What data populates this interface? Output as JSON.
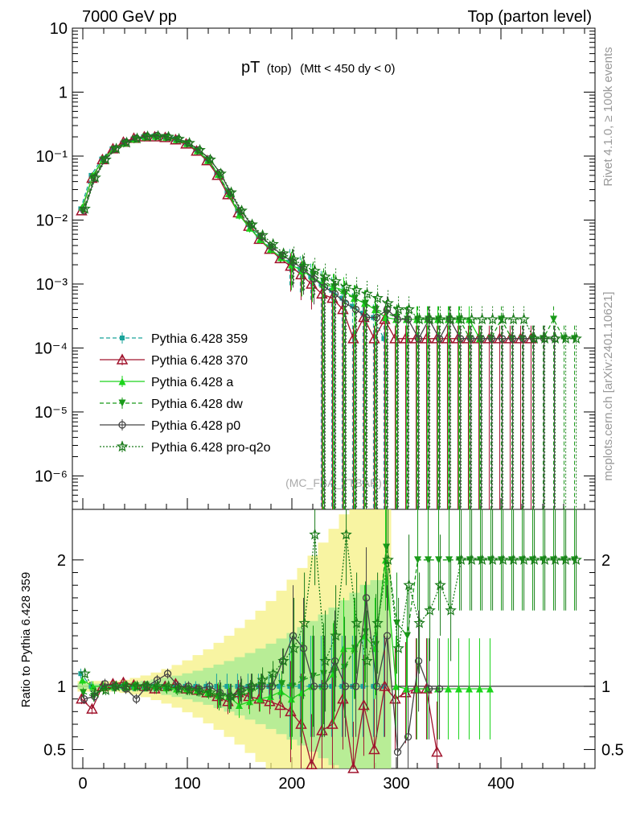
{
  "header": {
    "left": "7000 GeV pp",
    "right": "Top (parton level)"
  },
  "side_labels": {
    "rivet": "Rivet 4.1.0, ≥ 100k events",
    "mcplots": "mcplots.cern.ch [arXiv:2401.10621]"
  },
  "watermark": "(MC_FBA_TTBAR)",
  "chart_data": {
    "type": "line",
    "title": "pT (top) (Mtt < 450 dy < 0)",
    "title_main": "pT",
    "title_sub": "(top)",
    "title_cut": "(Mtt < 450 dy < 0)",
    "xlabel": "",
    "xlim": [
      -10,
      490
    ],
    "x_ticks": [
      "0",
      "100",
      "200",
      "300",
      "400"
    ],
    "upper": {
      "yscale": "log",
      "ylim": [
        3e-07,
        10
      ],
      "y_ticks": [
        "10⁻⁶",
        "10⁻⁵",
        "10⁻⁴",
        "10⁻³",
        "10⁻²",
        "10⁻¹",
        "1",
        "10"
      ]
    },
    "lower": {
      "ylabel": "Ratio to Pythia 6.428 359",
      "ylim": [
        0.35,
        2.4
      ],
      "y_ticks": [
        "0.5",
        "1",
        "2"
      ]
    },
    "x": [
      0,
      10,
      20,
      30,
      40,
      50,
      60,
      70,
      80,
      90,
      100,
      110,
      120,
      130,
      140,
      150,
      160,
      170,
      180,
      190,
      200,
      210,
      220,
      230,
      240,
      250,
      260,
      270,
      280,
      290,
      300,
      310,
      320,
      330,
      340,
      350,
      360,
      370,
      380,
      390,
      400,
      410,
      420,
      430,
      440,
      450,
      460,
      470
    ],
    "series": [
      {
        "name": "Pythia 6.428 359",
        "color": "#1aa39a",
        "marker": "square",
        "dash": "5,3",
        "values": [
          0.015,
          0.05,
          0.09,
          0.13,
          0.16,
          0.185,
          0.2,
          0.205,
          0.2,
          0.185,
          0.16,
          0.125,
          0.09,
          0.055,
          0.028,
          0.014,
          0.0085,
          0.0055,
          0.0038,
          0.0027,
          0.0022,
          0.0017,
          0.0013,
          0.001,
          0.0008,
          0.0006,
          0.00045,
          0.00035,
          0.0003,
          0.00014,
          null,
          null,
          null,
          null,
          null,
          null,
          null,
          null,
          null,
          null,
          null,
          null,
          null,
          null,
          null,
          null,
          null,
          null
        ],
        "ratio": [
          1.1,
          1.0,
          1.0,
          1.0,
          1.0,
          1.0,
          1.0,
          1.0,
          1.0,
          1.0,
          1.0,
          1.0,
          1.0,
          1.0,
          1.0,
          1.0,
          1.0,
          1.0,
          1.0,
          1.0,
          1.0,
          1.0,
          1.0,
          1.0,
          1.0,
          1.0,
          1.0,
          1.0,
          1.0,
          1.0,
          null,
          null,
          null,
          null,
          null,
          null,
          null,
          null,
          null,
          null,
          null,
          null,
          null,
          null,
          null,
          null,
          null,
          null
        ]
      },
      {
        "name": "Pythia 6.428 370",
        "color": "#a0142d",
        "marker": "triangle-open",
        "dash": "",
        "values": [
          0.014,
          0.045,
          0.088,
          0.13,
          0.165,
          0.19,
          0.2,
          0.2,
          0.195,
          0.18,
          0.155,
          0.12,
          0.085,
          0.05,
          0.025,
          0.013,
          0.008,
          0.005,
          0.0035,
          0.0025,
          0.0019,
          0.0014,
          0.001,
          0.0007,
          0.0006,
          0.0004,
          0.00014,
          0.0003,
          0.00014,
          0.00028,
          0.00014,
          0.00014,
          0.00014,
          0.00014,
          0.00014,
          0.00014,
          0.00014,
          0.00014,
          0.00014,
          0.00014,
          0.00014,
          0.00014,
          0.00014,
          0.00014,
          null,
          null,
          null,
          null
        ],
        "ratio": [
          0.9,
          0.82,
          1.0,
          1.02,
          1.03,
          1.01,
          1.0,
          0.98,
          1.0,
          1.02,
          0.98,
          0.97,
          0.95,
          0.92,
          0.88,
          0.95,
          0.92,
          0.9,
          0.88,
          0.85,
          0.8,
          0.7,
          0.38,
          0.65,
          0.7,
          0.9,
          0.32,
          0.85,
          0.5,
          1.0,
          0.9,
          0.95,
          0.98,
          0.98,
          0.48,
          null,
          null,
          null,
          null,
          null,
          null,
          null,
          null,
          null,
          null,
          null,
          null,
          null
        ]
      },
      {
        "name": "Pythia 6.428 a",
        "color": "#1cd41c",
        "marker": "triangle",
        "dash": "",
        "values": [
          0.016,
          0.05,
          0.09,
          0.13,
          0.16,
          0.185,
          0.2,
          0.205,
          0.198,
          0.182,
          0.158,
          0.122,
          0.086,
          0.052,
          0.026,
          0.012,
          0.0075,
          0.005,
          0.0035,
          0.0026,
          0.002,
          0.0016,
          0.0013,
          0.001,
          0.0009,
          0.0008,
          0.0006,
          0.0005,
          0.0004,
          0.0003,
          0.00028,
          0.00028,
          0.00028,
          0.00028,
          0.00028,
          0.00028,
          0.00028,
          0.00028,
          0.00014,
          null,
          null,
          null,
          null,
          null,
          null,
          null,
          null,
          null
        ],
        "ratio": [
          1.05,
          1.0,
          1.0,
          1.0,
          1.0,
          1.0,
          1.0,
          1.0,
          0.99,
          0.98,
          0.98,
          0.97,
          0.95,
          0.93,
          0.92,
          0.85,
          0.88,
          0.9,
          0.92,
          0.96,
          0.9,
          0.95,
          1.0,
          1.0,
          1.1,
          1.3,
          1.3,
          1.4,
          1.3,
          2.0,
          1.0,
          0.98,
          0.98,
          0.98,
          0.98,
          0.98,
          0.98,
          0.98,
          0.98,
          0.98,
          null,
          null,
          null,
          null,
          null,
          null,
          null,
          null
        ]
      },
      {
        "name": "Pythia 6.428 dw",
        "color": "#1a9a1a",
        "marker": "triangle-down",
        "dash": "5,3",
        "values": [
          0.014,
          0.046,
          0.088,
          0.128,
          0.16,
          0.185,
          0.2,
          0.2,
          0.195,
          0.18,
          0.155,
          0.12,
          0.085,
          0.05,
          0.025,
          0.013,
          0.008,
          0.0055,
          0.0038,
          0.0028,
          0.0022,
          0.0018,
          0.0014,
          0.0011,
          0.0009,
          0.0007,
          0.0006,
          0.0005,
          0.0004,
          0.00035,
          0.0003,
          0.00028,
          0.00028,
          0.00028,
          0.00028,
          0.00028,
          0.00028,
          0.00014,
          0.00014,
          0.00014,
          0.00028,
          0.00014,
          0.00014,
          0.00014,
          0.00014,
          0.00028,
          0.00014,
          0.00014
        ],
        "ratio": [
          0.95,
          0.92,
          0.98,
          0.98,
          1.0,
          1.0,
          1.0,
          0.98,
          0.98,
          0.97,
          0.97,
          0.96,
          0.94,
          0.91,
          0.89,
          0.93,
          0.95,
          1.0,
          1.0,
          1.02,
          1.0,
          1.05,
          1.08,
          1.1,
          1.12,
          1.15,
          1.3,
          1.43,
          1.33,
          2.1,
          1.5,
          1.4,
          2.0,
          2.0,
          2.0,
          2.0,
          2.0,
          2.0,
          2.0,
          2.0,
          2.0,
          2.0,
          2.0,
          2.0,
          2.0,
          2.0,
          2.0,
          2.0
        ]
      },
      {
        "name": "Pythia 6.428 p0",
        "color": "#444444",
        "marker": "circle-open",
        "dash": "",
        "values": [
          0.014,
          0.045,
          0.088,
          0.13,
          0.165,
          0.19,
          0.205,
          0.21,
          0.2,
          0.185,
          0.16,
          0.125,
          0.09,
          0.055,
          0.027,
          0.014,
          0.0085,
          0.0055,
          0.0038,
          0.0028,
          0.0022,
          0.0017,
          0.0012,
          0.0009,
          0.0007,
          0.0005,
          0.0004,
          0.0003,
          0.0003,
          0.0004,
          0.00028,
          0.00028,
          0.00014,
          0.00028,
          0.00014,
          0.00028,
          0.00014,
          0.00014,
          0.00014,
          0.00014,
          0.00014,
          0.00014,
          0.00014,
          0.00014,
          0.00014,
          0.00014,
          null,
          null
        ],
        "ratio": [
          0.9,
          0.92,
          1.02,
          1.0,
          0.98,
          0.9,
          1.0,
          1.05,
          1.1,
          1.0,
          1.0,
          0.98,
          1.0,
          0.95,
          0.92,
          0.98,
          1.0,
          1.0,
          1.0,
          1.2,
          1.4,
          1.3,
          1.0,
          1.0,
          1.2,
          1.0,
          1.0,
          1.7,
          1.0,
          1.4,
          0.48,
          0.6,
          1.2,
          0.98,
          0.98,
          null,
          null,
          null,
          null,
          null,
          null,
          null,
          null,
          null,
          null,
          null,
          null,
          null
        ]
      },
      {
        "name": "Pythia 6.428 pro-q2o",
        "color": "#1a7a1a",
        "marker": "star",
        "dash": "2,2",
        "values": [
          0.015,
          0.046,
          0.088,
          0.13,
          0.162,
          0.188,
          0.202,
          0.205,
          0.2,
          0.185,
          0.16,
          0.124,
          0.088,
          0.053,
          0.027,
          0.014,
          0.0085,
          0.0058,
          0.0042,
          0.003,
          0.0024,
          0.0019,
          0.0016,
          0.0013,
          0.0011,
          0.0009,
          0.0008,
          0.0007,
          0.0006,
          0.0005,
          0.0004,
          0.0004,
          0.00028,
          0.00028,
          0.00028,
          0.00028,
          0.00028,
          0.00028,
          0.00028,
          0.00028,
          0.00028,
          0.00028,
          0.00028,
          0.00014,
          0.00014,
          0.00014,
          0.00014,
          0.00014
        ],
        "ratio": [
          1.1,
          0.95,
          0.97,
          1.0,
          1.0,
          1.0,
          1.0,
          1.0,
          1.0,
          0.98,
          0.97,
          0.96,
          0.95,
          0.93,
          0.92,
          0.96,
          1.0,
          1.05,
          1.1,
          1.2,
          1.3,
          1.5,
          2.2,
          1.2,
          1.4,
          2.2,
          1.5,
          1.2,
          1.5,
          2.0,
          1.3,
          1.8,
          1.5,
          1.6,
          1.8,
          1.6,
          2.0,
          2.0,
          2.0,
          2.0,
          2.0,
          2.0,
          2.0,
          2.0,
          2.0,
          2.0,
          2.0,
          2.0
        ]
      }
    ]
  }
}
